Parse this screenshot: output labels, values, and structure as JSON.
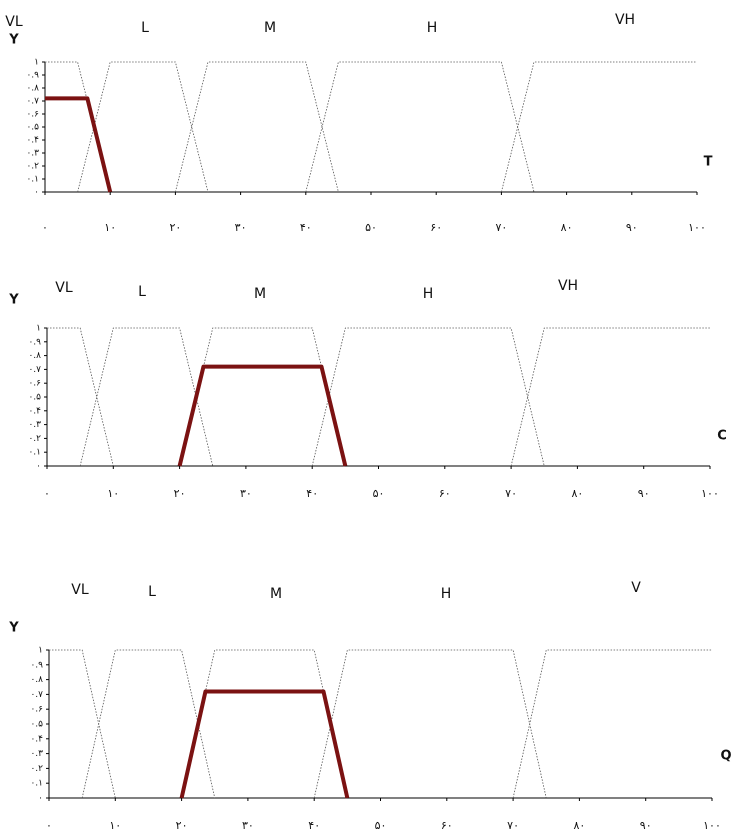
{
  "chart_data": [
    {
      "type": "line",
      "y_label": "Y",
      "x_label": "T",
      "xlim": [
        0,
        100
      ],
      "ylim": [
        0,
        1
      ],
      "xticks": [
        {
          "value": 0,
          "label": "۰"
        },
        {
          "value": 10,
          "label": "۱۰"
        },
        {
          "value": 20,
          "label": "۲۰"
        },
        {
          "value": 30,
          "label": "۳۰"
        },
        {
          "value": 40,
          "label": "۴۰"
        },
        {
          "value": 50,
          "label": "۵۰"
        },
        {
          "value": 60,
          "label": "۶۰"
        },
        {
          "value": 70,
          "label": "۷۰"
        },
        {
          "value": 80,
          "label": "۸۰"
        },
        {
          "value": 90,
          "label": "۹۰"
        },
        {
          "value": 100,
          "label": "۱۰۰"
        }
      ],
      "yticks": [
        {
          "value": 0,
          "label": "۰"
        },
        {
          "value": 0.1,
          "label": "۰.۱"
        },
        {
          "value": 0.2,
          "label": "۰.۲"
        },
        {
          "value": 0.3,
          "label": "۰.۳"
        },
        {
          "value": 0.4,
          "label": "۰.۴"
        },
        {
          "value": 0.5,
          "label": "۰.۵"
        },
        {
          "value": 0.6,
          "label": "۰.۶"
        },
        {
          "value": 0.7,
          "label": "۰.۷"
        },
        {
          "value": 0.8,
          "label": "۰.۸"
        },
        {
          "value": 0.9,
          "label": "۰.۹"
        },
        {
          "value": 1,
          "label": "۱"
        }
      ],
      "series": [
        {
          "name": "VL",
          "color": "#555555",
          "x": [
            0,
            5,
            10
          ],
          "values": [
            1,
            1,
            0
          ]
        },
        {
          "name": "L",
          "color": "#555555",
          "x": [
            5,
            10,
            20,
            25
          ],
          "values": [
            0,
            1,
            1,
            0
          ]
        },
        {
          "name": "M",
          "color": "#555555",
          "x": [
            20,
            25,
            40,
            45
          ],
          "values": [
            0,
            1,
            1,
            0
          ]
        },
        {
          "name": "H",
          "color": "#555555",
          "x": [
            40,
            45,
            70,
            75
          ],
          "values": [
            0,
            1,
            1,
            0
          ]
        },
        {
          "name": "VH",
          "color": "#555555",
          "x": [
            70,
            75,
            100
          ],
          "values": [
            0,
            1,
            1
          ]
        }
      ],
      "result": {
        "color": "#7b1212",
        "x": [
          0,
          6.5,
          10
        ],
        "values": [
          0.72,
          0.72,
          0
        ]
      }
    },
    {
      "type": "line",
      "y_label": "Y",
      "x_label": "C",
      "xlim": [
        0,
        100
      ],
      "ylim": [
        0,
        1
      ],
      "xticks": [
        {
          "value": 0,
          "label": "۰"
        },
        {
          "value": 10,
          "label": "۱۰"
        },
        {
          "value": 20,
          "label": "۲۰"
        },
        {
          "value": 30,
          "label": "۳۰"
        },
        {
          "value": 40,
          "label": "۴۰"
        },
        {
          "value": 50,
          "label": "۵۰"
        },
        {
          "value": 60,
          "label": "۶۰"
        },
        {
          "value": 70,
          "label": "۷۰"
        },
        {
          "value": 80,
          "label": "۸۰"
        },
        {
          "value": 90,
          "label": "۹۰"
        },
        {
          "value": 100,
          "label": "۱۰۰"
        }
      ],
      "yticks": [
        {
          "value": 0,
          "label": "۰"
        },
        {
          "value": 0.1,
          "label": "۰.۱"
        },
        {
          "value": 0.2,
          "label": "۰.۲"
        },
        {
          "value": 0.3,
          "label": "۰.۳"
        },
        {
          "value": 0.4,
          "label": "۰.۴"
        },
        {
          "value": 0.5,
          "label": "۰.۵"
        },
        {
          "value": 0.6,
          "label": "۰.۶"
        },
        {
          "value": 0.7,
          "label": "۰.۷"
        },
        {
          "value": 0.8,
          "label": "۰.۸"
        },
        {
          "value": 0.9,
          "label": "۰.۹"
        },
        {
          "value": 1,
          "label": "۱"
        }
      ],
      "series": [
        {
          "name": "VL",
          "color": "#555555",
          "x": [
            0,
            5,
            10
          ],
          "values": [
            1,
            1,
            0
          ]
        },
        {
          "name": "L",
          "color": "#555555",
          "x": [
            5,
            10,
            20,
            25
          ],
          "values": [
            0,
            1,
            1,
            0
          ]
        },
        {
          "name": "M",
          "color": "#555555",
          "x": [
            20,
            25,
            40,
            45
          ],
          "values": [
            0,
            1,
            1,
            0
          ]
        },
        {
          "name": "H",
          "color": "#555555",
          "x": [
            40,
            45,
            70,
            75
          ],
          "values": [
            0,
            1,
            1,
            0
          ]
        },
        {
          "name": "VH",
          "color": "#555555",
          "x": [
            70,
            75,
            100
          ],
          "values": [
            0,
            1,
            1
          ]
        }
      ],
      "result": {
        "color": "#7b1212",
        "x": [
          20,
          23.6,
          41.4,
          45
        ],
        "values": [
          0,
          0.72,
          0.72,
          0
        ]
      }
    },
    {
      "type": "line",
      "y_label": "Y",
      "x_label": "Q",
      "xlim": [
        0,
        100
      ],
      "ylim": [
        0,
        1
      ],
      "xticks": [
        {
          "value": 0,
          "label": "۰"
        },
        {
          "value": 10,
          "label": "۱۰"
        },
        {
          "value": 20,
          "label": "۲۰"
        },
        {
          "value": 30,
          "label": "۳۰"
        },
        {
          "value": 40,
          "label": "۴۰"
        },
        {
          "value": 50,
          "label": "۵۰"
        },
        {
          "value": 60,
          "label": "۶۰"
        },
        {
          "value": 70,
          "label": "۷۰"
        },
        {
          "value": 80,
          "label": "۸۰"
        },
        {
          "value": 90,
          "label": "۹۰"
        },
        {
          "value": 100,
          "label": "۱۰۰"
        }
      ],
      "yticks": [
        {
          "value": 0,
          "label": "۰"
        },
        {
          "value": 0.1,
          "label": "۰.۱"
        },
        {
          "value": 0.2,
          "label": "۰.۲"
        },
        {
          "value": 0.3,
          "label": "۰.۳"
        },
        {
          "value": 0.4,
          "label": "۰.۴"
        },
        {
          "value": 0.5,
          "label": "۰.۵"
        },
        {
          "value": 0.6,
          "label": "۰.۶"
        },
        {
          "value": 0.7,
          "label": "۰.۷"
        },
        {
          "value": 0.8,
          "label": "۰.۸"
        },
        {
          "value": 0.9,
          "label": "۰.۹"
        },
        {
          "value": 1,
          "label": "۱"
        }
      ],
      "series": [
        {
          "name": "VL",
          "color": "#555555",
          "x": [
            0,
            5,
            10
          ],
          "values": [
            1,
            1,
            0
          ]
        },
        {
          "name": "L",
          "color": "#555555",
          "x": [
            5,
            10,
            20,
            25
          ],
          "values": [
            0,
            1,
            1,
            0
          ]
        },
        {
          "name": "M",
          "color": "#555555",
          "x": [
            20,
            25,
            40,
            45
          ],
          "values": [
            0,
            1,
            1,
            0
          ]
        },
        {
          "name": "H",
          "color": "#555555",
          "x": [
            40,
            45,
            70,
            75
          ],
          "values": [
            0,
            1,
            1,
            0
          ]
        },
        {
          "name": "V",
          "color": "#555555",
          "x": [
            70,
            75,
            100
          ],
          "values": [
            0,
            1,
            1
          ]
        }
      ],
      "result": {
        "color": "#7b1212",
        "x": [
          20,
          23.6,
          41.4,
          45
        ],
        "values": [
          0,
          0.72,
          0.72,
          0
        ]
      }
    }
  ]
}
